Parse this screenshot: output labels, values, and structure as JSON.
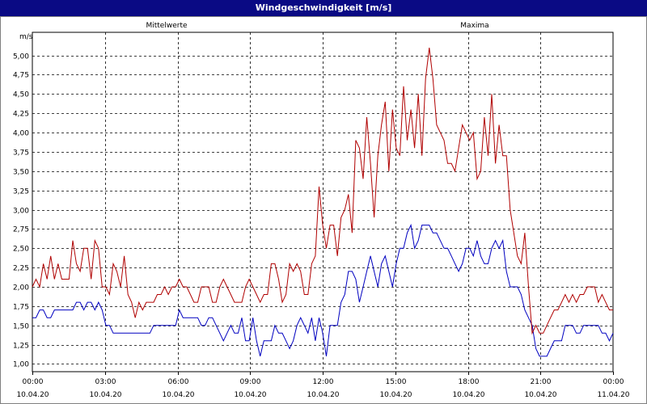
{
  "window": {
    "title": "Windgeschwindigkeit [m/s]"
  },
  "chart_data": {
    "type": "line",
    "title": "Windgeschwindigkeit [m/s]",
    "ylabel": "m/s",
    "ylim": [
      0.9,
      5.3
    ],
    "y_ticks": [
      "1,00",
      "1,25",
      "1,50",
      "1,75",
      "2,00",
      "2,25",
      "2,50",
      "2,75",
      "3,00",
      "3,25",
      "3,50",
      "3,75",
      "4,00",
      "4,25",
      "4,50",
      "4,75",
      "5,00"
    ],
    "y_tick_values": [
      1.0,
      1.25,
      1.5,
      1.75,
      2.0,
      2.25,
      2.5,
      2.75,
      3.0,
      3.25,
      3.5,
      3.75,
      4.0,
      4.25,
      4.5,
      4.75,
      5.0
    ],
    "x_range_hours": [
      0,
      24
    ],
    "x_ticks": [
      {
        "time": "00:00",
        "date": "10.04.20"
      },
      {
        "time": "03:00",
        "date": "10.04.20"
      },
      {
        "time": "06:00",
        "date": "10.04.20"
      },
      {
        "time": "09:00",
        "date": "10.04.20"
      },
      {
        "time": "12:00",
        "date": "10.04.20"
      },
      {
        "time": "15:00",
        "date": "10.04.20"
      },
      {
        "time": "18:00",
        "date": "10.04.20"
      },
      {
        "time": "21:00",
        "date": "10.04.20"
      },
      {
        "time": "00:00",
        "date": "11.04.20"
      }
    ],
    "grid": true,
    "legend": [
      {
        "name": "Mittelwerte",
        "color": "#0000c0",
        "position": "top-left"
      },
      {
        "name": "Maxima",
        "color": "#b00000",
        "position": "top-right"
      }
    ],
    "series": [
      {
        "name": "Mittelwerte",
        "color": "#0000c0",
        "step_hours": 0.1667,
        "values": [
          1.6,
          1.6,
          1.7,
          1.7,
          1.6,
          1.6,
          1.7,
          1.7,
          1.7,
          1.7,
          1.7,
          1.7,
          1.8,
          1.8,
          1.7,
          1.8,
          1.8,
          1.7,
          1.8,
          1.7,
          1.5,
          1.5,
          1.4,
          1.4,
          1.4,
          1.4,
          1.4,
          1.4,
          1.4,
          1.4,
          1.4,
          1.4,
          1.4,
          1.5,
          1.5,
          1.5,
          1.5,
          1.5,
          1.5,
          1.5,
          1.7,
          1.6,
          1.6,
          1.6,
          1.6,
          1.6,
          1.5,
          1.5,
          1.6,
          1.6,
          1.5,
          1.4,
          1.3,
          1.4,
          1.5,
          1.4,
          1.4,
          1.6,
          1.3,
          1.3,
          1.6,
          1.3,
          1.1,
          1.3,
          1.3,
          1.3,
          1.5,
          1.4,
          1.4,
          1.3,
          1.2,
          1.3,
          1.5,
          1.6,
          1.5,
          1.4,
          1.6,
          1.3,
          1.6,
          1.4,
          1.1,
          1.5,
          1.5,
          1.5,
          1.8,
          1.9,
          2.2,
          2.2,
          2.1,
          1.8,
          2.0,
          2.2,
          2.4,
          2.2,
          2.0,
          2.3,
          2.4,
          2.2,
          2.0,
          2.3,
          2.5,
          2.5,
          2.7,
          2.8,
          2.5,
          2.6,
          2.8,
          2.8,
          2.8,
          2.7,
          2.7,
          2.6,
          2.5,
          2.5,
          2.4,
          2.3,
          2.2,
          2.3,
          2.5,
          2.5,
          2.4,
          2.6,
          2.4,
          2.3,
          2.3,
          2.5,
          2.6,
          2.5,
          2.6,
          2.2,
          2.0,
          2.0,
          2.0,
          1.9,
          1.7,
          1.6,
          1.5,
          1.2,
          1.1,
          1.1,
          1.1,
          1.2,
          1.3,
          1.3,
          1.3,
          1.5,
          1.5,
          1.5,
          1.4,
          1.4,
          1.5,
          1.5,
          1.5,
          1.5,
          1.5,
          1.4,
          1.4,
          1.3,
          1.4
        ]
      },
      {
        "name": "Maxima",
        "color": "#b00000",
        "step_hours": 0.1667,
        "values": [
          2.0,
          2.1,
          2.0,
          2.3,
          2.1,
          2.4,
          2.1,
          2.3,
          2.1,
          2.1,
          2.1,
          2.6,
          2.3,
          2.2,
          2.5,
          2.5,
          2.1,
          2.6,
          2.5,
          2.0,
          2.0,
          1.9,
          2.3,
          2.2,
          2.0,
          2.4,
          1.9,
          1.8,
          1.6,
          1.8,
          1.7,
          1.8,
          1.8,
          1.8,
          1.9,
          1.9,
          2.0,
          1.9,
          2.0,
          2.0,
          2.1,
          2.0,
          2.0,
          1.9,
          1.8,
          1.8,
          2.0,
          2.0,
          2.0,
          1.8,
          1.8,
          2.0,
          2.1,
          2.0,
          1.9,
          1.8,
          1.8,
          1.8,
          2.0,
          2.1,
          2.0,
          1.9,
          1.8,
          1.9,
          1.9,
          2.3,
          2.3,
          2.1,
          1.8,
          1.9,
          2.3,
          2.2,
          2.3,
          2.2,
          1.9,
          1.9,
          2.3,
          2.4,
          3.3,
          2.8,
          2.5,
          2.8,
          2.8,
          2.4,
          2.9,
          3.0,
          3.2,
          2.7,
          3.9,
          3.8,
          3.4,
          4.2,
          3.6,
          2.9,
          3.7,
          4.1,
          4.4,
          3.5,
          4.3,
          3.8,
          3.7,
          4.6,
          3.9,
          4.3,
          3.8,
          4.5,
          3.7,
          4.7,
          5.1,
          4.7,
          4.1,
          4.0,
          3.9,
          3.6,
          3.6,
          3.5,
          3.8,
          4.1,
          4.0,
          3.9,
          4.0,
          3.4,
          3.5,
          4.2,
          3.7,
          4.5,
          3.6,
          4.1,
          3.7,
          3.7,
          3.0,
          2.7,
          2.4,
          2.3,
          2.7,
          2.0,
          1.4,
          1.5,
          1.4,
          1.4,
          1.5,
          1.6,
          1.7,
          1.7,
          1.8,
          1.9,
          1.8,
          1.9,
          1.8,
          1.9,
          1.9,
          2.0,
          2.0,
          2.0,
          1.8,
          1.9,
          1.8,
          1.7,
          1.7
        ]
      }
    ]
  }
}
